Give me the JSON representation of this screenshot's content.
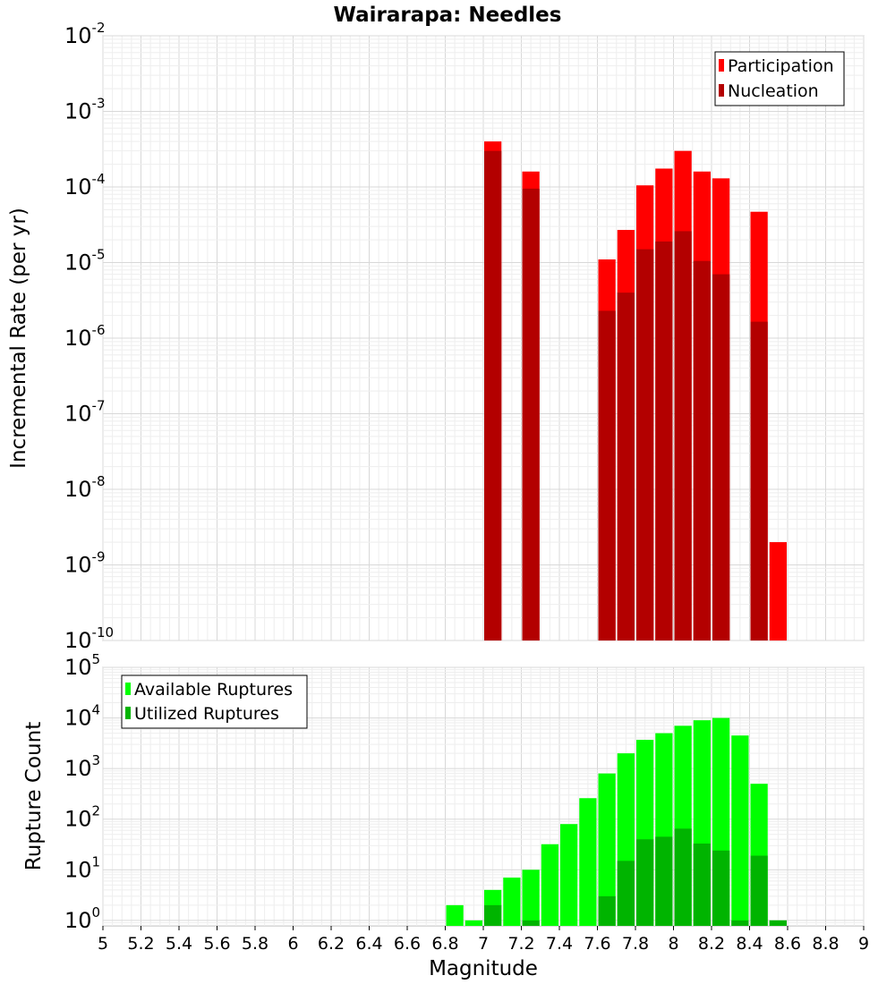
{
  "chart_data": [
    {
      "type": "bar",
      "title": "Wairarapa: Needles",
      "ylabel": "Incremental Rate (per yr)",
      "xlabel": "",
      "yscale": "log",
      "ylim": [
        1e-10,
        0.01
      ],
      "xlim": [
        5,
        9
      ],
      "legend_position": "top-right",
      "grid": true,
      "ytick_labels": [
        {
          "base": "10",
          "exp": "-10"
        },
        {
          "base": "10",
          "exp": "-9"
        },
        {
          "base": "10",
          "exp": "-8"
        },
        {
          "base": "10",
          "exp": "-7"
        },
        {
          "base": "10",
          "exp": "-6"
        },
        {
          "base": "10",
          "exp": "-5"
        },
        {
          "base": "10",
          "exp": "-4"
        },
        {
          "base": "10",
          "exp": "-3"
        },
        {
          "base": "10",
          "exp": "-2"
        }
      ],
      "series": [
        {
          "name": "Participation",
          "color": "#ff0000",
          "x": [
            7.05,
            7.25,
            7.65,
            7.75,
            7.85,
            7.95,
            8.05,
            8.15,
            8.25,
            8.45,
            8.55
          ],
          "values": [
            0.0004,
            0.00016,
            1.1e-05,
            2.7e-05,
            0.000105,
            0.000175,
            0.0003,
            0.00016,
            0.00013,
            4.7e-05,
            2e-09
          ]
        },
        {
          "name": "Nucleation",
          "color": "#b30000",
          "x": [
            7.05,
            7.25,
            7.65,
            7.75,
            7.85,
            7.95,
            8.05,
            8.15,
            8.25,
            8.45
          ],
          "values": [
            0.0003,
            9.5e-05,
            2.3e-06,
            4e-06,
            1.5e-05,
            1.9e-05,
            2.6e-05,
            1.05e-05,
            7e-06,
            1.65e-06
          ]
        }
      ]
    },
    {
      "type": "bar",
      "title": "",
      "ylabel": "Rupture Count",
      "xlabel": "Magnitude",
      "yscale": "log",
      "ylim": [
        0.78,
        100000.0
      ],
      "xlim": [
        5,
        9
      ],
      "legend_position": "top-left",
      "grid": true,
      "xtick_labels": [
        "5",
        "5.2",
        "5.4",
        "5.6",
        "5.8",
        "6",
        "6.2",
        "6.4",
        "6.6",
        "6.8",
        "7",
        "7.2",
        "7.4",
        "7.6",
        "7.8",
        "8",
        "8.2",
        "8.4",
        "8.6",
        "8.8",
        "9"
      ],
      "ytick_labels": [
        {
          "base": "10",
          "exp": "0"
        },
        {
          "base": "10",
          "exp": "1"
        },
        {
          "base": "10",
          "exp": "2"
        },
        {
          "base": "10",
          "exp": "3"
        },
        {
          "base": "10",
          "exp": "4"
        },
        {
          "base": "10",
          "exp": "5"
        }
      ],
      "series": [
        {
          "name": "Available Ruptures",
          "color": "#00ff00",
          "x": [
            6.85,
            6.95,
            7.05,
            7.15,
            7.25,
            7.35,
            7.45,
            7.55,
            7.65,
            7.75,
            7.85,
            7.95,
            8.05,
            8.15,
            8.25,
            8.35,
            8.45,
            8.55
          ],
          "values": [
            2,
            1,
            4,
            7,
            10,
            32,
            80,
            260,
            800,
            2000,
            3700,
            5000,
            7000,
            9000,
            10000,
            4500,
            500,
            1
          ]
        },
        {
          "name": "Utilized Ruptures",
          "color": "#00b400",
          "x": [
            7.05,
            7.25,
            7.65,
            7.75,
            7.85,
            7.95,
            8.05,
            8.15,
            8.25,
            8.35,
            8.45,
            8.55
          ],
          "values": [
            2,
            1,
            3,
            15,
            40,
            45,
            65,
            33,
            24,
            1,
            19,
            1
          ]
        }
      ]
    }
  ]
}
